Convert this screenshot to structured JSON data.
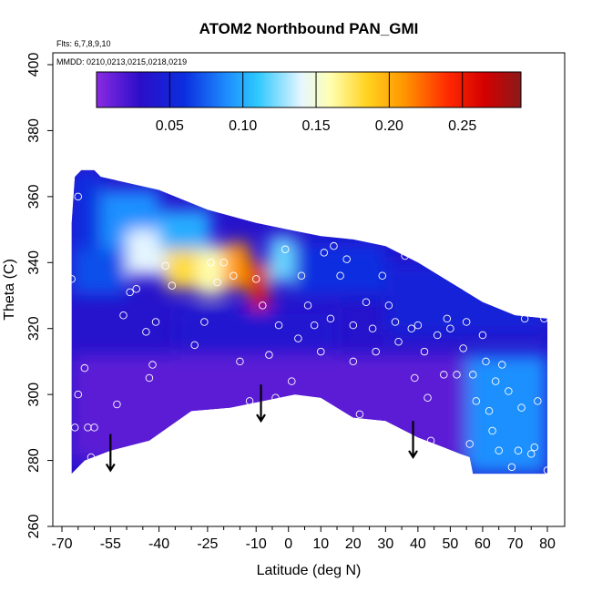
{
  "chart_data": {
    "type": "heatmap",
    "title": "ATOM2 Northbound PAN_GMI",
    "xlabel": "Latitude (deg N)",
    "ylabel": "Theta (C)",
    "notes": [
      "Flts: 6,7,8,9,10",
      "MMDD: 0210,0213,0215,0218,0219"
    ],
    "xlim": [
      -70,
      82
    ],
    "ylim": [
      260,
      402
    ],
    "x_ticks": [
      -70,
      -55,
      -40,
      -25,
      -10,
      0,
      10,
      20,
      30,
      40,
      50,
      60,
      70,
      80
    ],
    "x_tick_labels": [
      "-70",
      "-55",
      "-40",
      "-25",
      "-10",
      "0",
      "10",
      "20",
      "30",
      "40",
      "50",
      "60",
      "70",
      "80"
    ],
    "x_minor_ticks": [
      -65,
      -60,
      -50,
      -45,
      -35,
      -30,
      -20,
      -15,
      -5,
      5,
      15,
      25,
      35,
      45,
      55,
      65,
      75
    ],
    "y_ticks": [
      260,
      280,
      300,
      320,
      340,
      360,
      380,
      400
    ],
    "y_tick_labels": [
      "260",
      "280",
      "300",
      "320",
      "340",
      "360",
      "380",
      "400"
    ],
    "colorbar": {
      "range": [
        0,
        0.29
      ],
      "ticks": [
        0.05,
        0.1,
        0.15,
        0.2,
        0.25
      ],
      "tick_labels": [
        "0.05",
        "0.10",
        "0.15",
        "0.20",
        "0.25"
      ],
      "stops": [
        {
          "v": 0.0,
          "color": "#8a2be2"
        },
        {
          "v": 0.03,
          "color": "#2b0ec8"
        },
        {
          "v": 0.06,
          "color": "#0b2ee0"
        },
        {
          "v": 0.09,
          "color": "#1e90ff"
        },
        {
          "v": 0.11,
          "color": "#2ec8ff"
        },
        {
          "v": 0.14,
          "color": "#e6f6ff"
        },
        {
          "v": 0.16,
          "color": "#ffffb0"
        },
        {
          "v": 0.185,
          "color": "#ffd21f"
        },
        {
          "v": 0.21,
          "color": "#ff9600"
        },
        {
          "v": 0.24,
          "color": "#ff2a00"
        },
        {
          "v": 0.265,
          "color": "#d40000"
        },
        {
          "v": 0.29,
          "color": "#8b1a1a"
        }
      ]
    },
    "field": [
      {
        "x": [
          -67,
          -58
        ],
        "theta": [
          344,
          368
        ],
        "value": 0.06
      },
      {
        "x": [
          -58,
          -40
        ],
        "theta": [
          344,
          362
        ],
        "value": 0.09
      },
      {
        "x": [
          -67,
          -50
        ],
        "theta": [
          330,
          344
        ],
        "value": 0.07
      },
      {
        "x": [
          -50,
          -38
        ],
        "theta": [
          336,
          350
        ],
        "value": 0.14
      },
      {
        "x": [
          -38,
          -28
        ],
        "theta": [
          332,
          346
        ],
        "value": 0.18
      },
      {
        "x": [
          -28,
          -20
        ],
        "theta": [
          330,
          345
        ],
        "value": 0.16
      },
      {
        "x": [
          -20,
          -12
        ],
        "theta": [
          332,
          346
        ],
        "value": 0.21
      },
      {
        "x": [
          -12,
          -6
        ],
        "theta": [
          326,
          340
        ],
        "value": 0.26
      },
      {
        "x": [
          -6,
          2
        ],
        "theta": [
          334,
          348
        ],
        "value": 0.12
      },
      {
        "x": [
          -40,
          -24
        ],
        "theta": [
          344,
          356
        ],
        "value": 0.1
      },
      {
        "x": [
          2,
          30
        ],
        "theta": [
          330,
          346
        ],
        "value": 0.06
      },
      {
        "x": [
          30,
          80
        ],
        "theta": [
          318,
          340
        ],
        "value": 0.05
      },
      {
        "x": [
          -35,
          15
        ],
        "theta": [
          310,
          326
        ],
        "value": 0.04
      },
      {
        "x": [
          55,
          80
        ],
        "theta": [
          276,
          312
        ],
        "value": 0.09
      },
      {
        "x": [
          -67,
          55
        ],
        "theta": [
          280,
          312
        ],
        "value": 0.015
      }
    ],
    "points": [
      [
        -67,
        335
      ],
      [
        -65,
        300
      ],
      [
        -66,
        290
      ],
      [
        -65,
        360
      ],
      [
        -63,
        308
      ],
      [
        -62,
        290
      ],
      [
        -61,
        281
      ],
      [
        -60,
        290
      ],
      [
        -53,
        297
      ],
      [
        -51,
        324
      ],
      [
        -49,
        331
      ],
      [
        -47,
        332
      ],
      [
        -44,
        319
      ],
      [
        -43,
        305
      ],
      [
        -42,
        309
      ],
      [
        -41,
        322
      ],
      [
        -38,
        339
      ],
      [
        -36,
        333
      ],
      [
        -29,
        315
      ],
      [
        -26,
        322
      ],
      [
        -24,
        340
      ],
      [
        -22,
        334
      ],
      [
        -20,
        340
      ],
      [
        -17,
        336
      ],
      [
        -15,
        310
      ],
      [
        -12,
        298
      ],
      [
        -10,
        335
      ],
      [
        -8,
        327
      ],
      [
        -6,
        312
      ],
      [
        -4,
        299
      ],
      [
        -3,
        321
      ],
      [
        -1,
        344
      ],
      [
        1,
        304
      ],
      [
        3,
        317
      ],
      [
        4,
        336
      ],
      [
        6,
        327
      ],
      [
        8,
        321
      ],
      [
        10,
        313
      ],
      [
        11,
        343
      ],
      [
        13,
        323
      ],
      [
        14,
        345
      ],
      [
        16,
        336
      ],
      [
        18,
        341
      ],
      [
        20,
        321
      ],
      [
        20,
        310
      ],
      [
        22,
        294
      ],
      [
        24,
        328
      ],
      [
        26,
        320
      ],
      [
        27,
        313
      ],
      [
        29,
        336
      ],
      [
        31,
        327
      ],
      [
        33,
        322
      ],
      [
        34,
        316
      ],
      [
        36,
        342
      ],
      [
        38,
        320
      ],
      [
        39,
        305
      ],
      [
        40,
        321
      ],
      [
        42,
        313
      ],
      [
        43,
        299
      ],
      [
        44,
        286
      ],
      [
        46,
        318
      ],
      [
        48,
        306
      ],
      [
        49,
        323
      ],
      [
        50,
        320
      ],
      [
        52,
        306
      ],
      [
        54,
        314
      ],
      [
        55,
        322
      ],
      [
        56,
        285
      ],
      [
        57,
        306
      ],
      [
        58,
        298
      ],
      [
        60,
        318
      ],
      [
        61,
        310
      ],
      [
        62,
        295
      ],
      [
        63,
        289
      ],
      [
        64,
        304
      ],
      [
        65,
        283
      ],
      [
        66,
        309
      ],
      [
        68,
        301
      ],
      [
        69,
        278
      ],
      [
        71,
        283
      ],
      [
        72,
        296
      ],
      [
        73,
        323
      ],
      [
        75,
        282
      ],
      [
        76,
        284
      ],
      [
        77,
        298
      ],
      [
        79,
        323
      ],
      [
        80,
        277
      ]
    ],
    "arrows": [
      {
        "x": -55,
        "theta": 288
      },
      {
        "x": -8.5,
        "theta": 303
      },
      {
        "x": 38.5,
        "theta": 292
      }
    ],
    "floor_outline": [
      [
        -67,
        276
      ],
      [
        -63,
        280
      ],
      [
        -55,
        283
      ],
      [
        -43,
        286
      ],
      [
        -30,
        295
      ],
      [
        -18,
        296
      ],
      [
        -8,
        298
      ],
      [
        2,
        300
      ],
      [
        10,
        299
      ],
      [
        20,
        293
      ],
      [
        30,
        292
      ],
      [
        40,
        287
      ],
      [
        48,
        284
      ],
      [
        53,
        282
      ],
      [
        56,
        281
      ],
      [
        57,
        276
      ],
      [
        80,
        276
      ]
    ]
  }
}
